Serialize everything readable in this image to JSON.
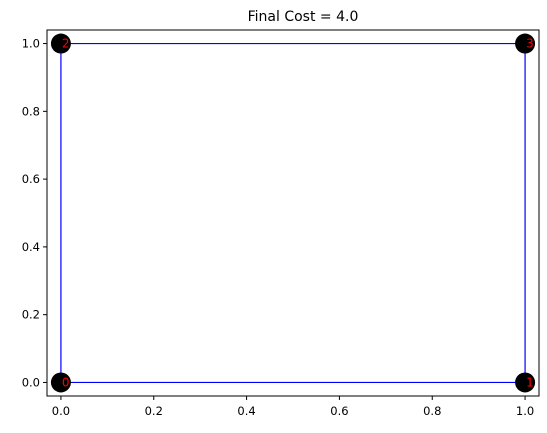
{
  "chart_data": {
    "type": "scatter",
    "title": "Final Cost = 4.0",
    "xlabel": "",
    "ylabel": "",
    "xlim": [
      -0.03,
      1.03
    ],
    "ylim": [
      -0.04,
      1.04
    ],
    "x_ticks": [
      0.0,
      0.2,
      0.4,
      0.6,
      0.8,
      1.0
    ],
    "x_tick_labels": [
      "0.0",
      "0.2",
      "0.4",
      "0.6",
      "0.8",
      "1.0"
    ],
    "y_ticks": [
      0.0,
      0.2,
      0.4,
      0.6,
      0.8,
      1.0
    ],
    "y_tick_labels": [
      "0.0",
      "0.2",
      "0.4",
      "0.6",
      "0.8",
      "1.0"
    ],
    "grid": false,
    "points": [
      {
        "label": "0",
        "x": 0,
        "y": 0
      },
      {
        "label": "1",
        "x": 1,
        "y": 0
      },
      {
        "label": "2",
        "x": 0,
        "y": 1
      },
      {
        "label": "3",
        "x": 1,
        "y": 1
      }
    ],
    "path_order": [
      "0",
      "1",
      "3",
      "2",
      "0"
    ],
    "colors": {
      "points": "#000000",
      "path": "#0000ff",
      "labels": "#ff0000"
    }
  }
}
